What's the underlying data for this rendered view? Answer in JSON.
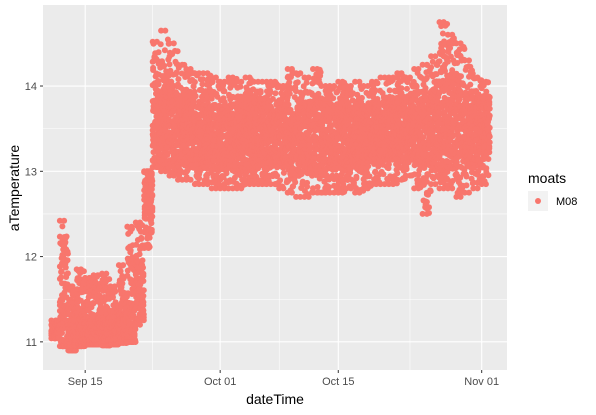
{
  "chart_data": {
    "type": "scatter",
    "title": "",
    "xlabel": "dateTime",
    "ylabel": "aTemperature",
    "x_ticks": [
      "Sep 15",
      "Oct 01",
      "Oct 15",
      "Nov 01"
    ],
    "x_tick_dates": [
      "2021-09-15",
      "2021-10-01",
      "2021-10-15",
      "2021-11-01"
    ],
    "y_ticks": [
      "11",
      "12",
      "13",
      "14"
    ],
    "xlim": [
      "2021-09-10",
      "2021-11-04"
    ],
    "ylim": [
      10.67,
      14.95
    ],
    "grid": true,
    "legend": {
      "title": "moats",
      "position": "right"
    },
    "series": [
      {
        "name": "M08",
        "color": "#F8766D",
        "x": [
          "2021-09-11",
          "2021-09-12",
          "2021-09-13",
          "2021-09-14",
          "2021-09-15",
          "2021-09-16",
          "2021-09-17",
          "2021-09-18",
          "2021-09-19",
          "2021-09-20",
          "2021-09-21",
          "2021-09-22",
          "2021-09-23",
          "2021-09-24",
          "2021-09-25",
          "2021-09-26",
          "2021-09-27",
          "2021-09-28",
          "2021-09-29",
          "2021-09-30",
          "2021-10-01",
          "2021-10-02",
          "2021-10-03",
          "2021-10-04",
          "2021-10-05",
          "2021-10-06",
          "2021-10-07",
          "2021-10-08",
          "2021-10-09",
          "2021-10-10",
          "2021-10-11",
          "2021-10-12",
          "2021-10-13",
          "2021-10-14",
          "2021-10-15",
          "2021-10-16",
          "2021-10-17",
          "2021-10-18",
          "2021-10-19",
          "2021-10-20",
          "2021-10-21",
          "2021-10-22",
          "2021-10-23",
          "2021-10-24",
          "2021-10-25",
          "2021-10-26",
          "2021-10-27",
          "2021-10-28",
          "2021-10-29",
          "2021-10-30",
          "2021-10-31",
          "2021-11-01"
        ],
        "y_min": [
          11.04,
          10.95,
          10.9,
          10.95,
          10.97,
          10.97,
          10.96,
          10.97,
          10.99,
          11.0,
          11.2,
          12.1,
          13.05,
          13.0,
          12.95,
          12.9,
          12.9,
          12.85,
          12.85,
          12.8,
          12.8,
          12.8,
          12.8,
          12.85,
          12.85,
          12.85,
          12.85,
          12.8,
          12.75,
          12.7,
          12.7,
          12.75,
          12.75,
          12.75,
          12.75,
          12.8,
          12.75,
          12.8,
          12.85,
          12.85,
          12.85,
          12.9,
          12.95,
          12.8,
          12.5,
          12.85,
          12.8,
          12.8,
          12.7,
          12.75,
          12.8,
          12.85
        ],
        "y_max": [
          11.25,
          12.42,
          11.65,
          11.85,
          11.75,
          11.78,
          11.8,
          11.65,
          11.9,
          12.35,
          12.4,
          13.0,
          14.52,
          14.65,
          14.5,
          14.25,
          14.2,
          14.15,
          14.15,
          14.1,
          14.05,
          14.1,
          14.05,
          14.1,
          14.05,
          14.05,
          14.05,
          14.0,
          14.2,
          14.15,
          14.1,
          14.2,
          14.0,
          14.0,
          14.05,
          14.0,
          14.05,
          14.0,
          14.05,
          14.1,
          14.1,
          14.15,
          14.1,
          14.2,
          14.25,
          14.35,
          14.75,
          14.6,
          14.5,
          14.3,
          14.1,
          14.05
        ],
        "y_typical": [
          11.1,
          11.1,
          11.05,
          11.05,
          11.05,
          11.05,
          11.05,
          11.05,
          11.05,
          11.05,
          11.6,
          12.8,
          13.4,
          13.5,
          13.5,
          13.45,
          13.45,
          13.4,
          13.4,
          13.4,
          13.35,
          13.4,
          13.4,
          13.4,
          13.45,
          13.45,
          13.4,
          13.4,
          13.35,
          13.4,
          13.4,
          13.4,
          13.45,
          13.4,
          13.4,
          13.4,
          13.4,
          13.45,
          13.45,
          13.5,
          13.5,
          13.5,
          13.5,
          13.55,
          13.55,
          13.5,
          13.5,
          13.55,
          13.5,
          13.5,
          13.45,
          13.5
        ]
      }
    ]
  }
}
